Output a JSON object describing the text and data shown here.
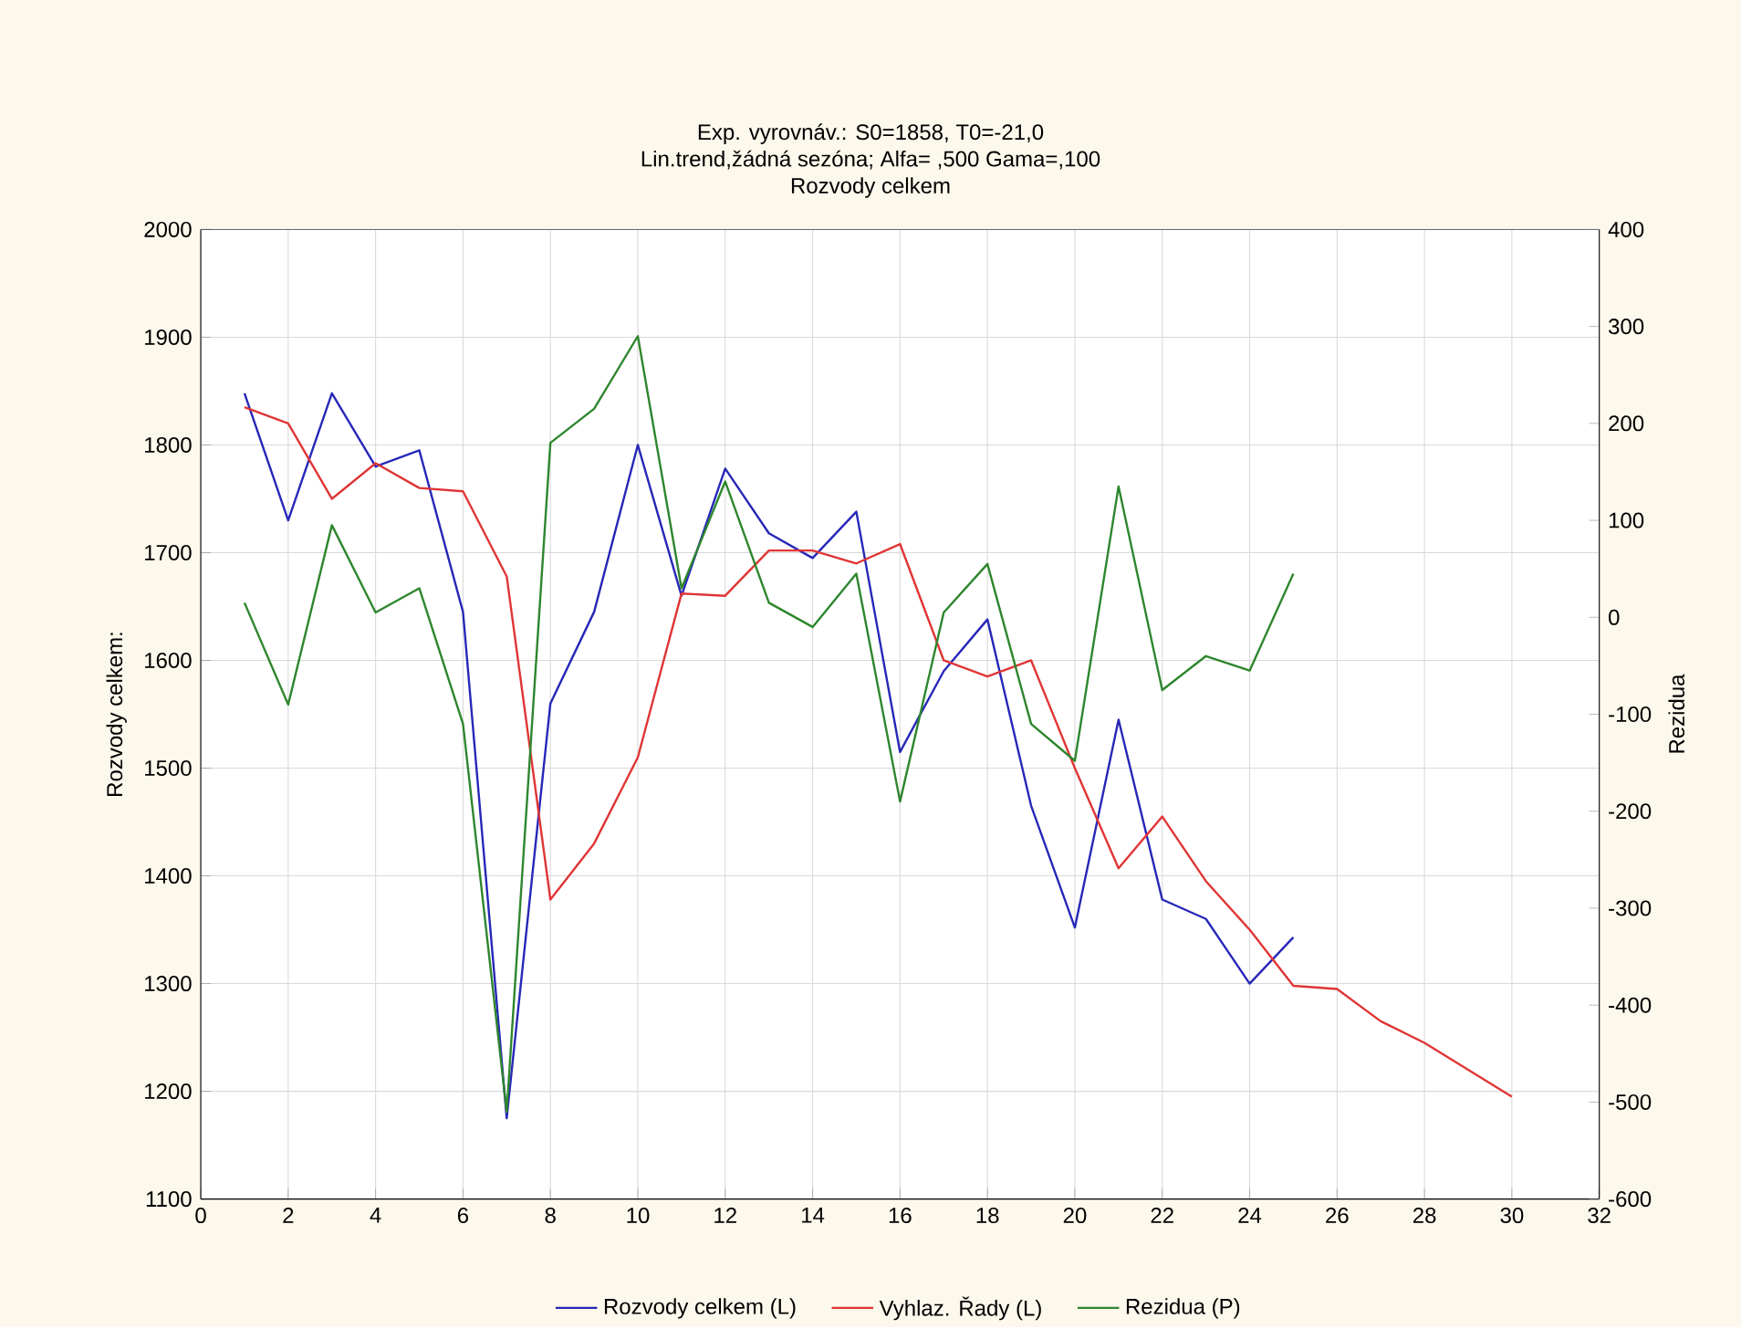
{
  "chart_data": {
    "type": "line",
    "title": "Exp. vyrovnáv.:  S0=1858, T0=-21,0",
    "subtitle": "Lin.trend,žádná sezóna; Alfa=  ,500 Gama=,100",
    "annotations": [
      "Rozvody celkem"
    ],
    "ylabel": "Rozvody celkem:",
    "y2label": "Rezidua",
    "xlim": [
      0,
      32
    ],
    "xticks": [
      0,
      2,
      4,
      6,
      8,
      10,
      12,
      14,
      16,
      18,
      20,
      22,
      24,
      26,
      28,
      30,
      32
    ],
    "ylim": [
      1100,
      2000
    ],
    "yticks": [
      1100,
      1200,
      1300,
      1400,
      1500,
      1600,
      1700,
      1800,
      1900,
      2000
    ],
    "y2lim": [
      -600,
      400
    ],
    "y2ticks": [
      -600,
      -500,
      -400,
      -300,
      -200,
      -100,
      0,
      100,
      200,
      300,
      400
    ],
    "grid": true,
    "legend": "bottom",
    "series": [
      {
        "name": "Rozvody celkem (L)",
        "color": "#2727b8",
        "x": [
          1,
          2,
          3,
          4,
          5,
          6,
          7,
          8,
          9,
          10,
          11,
          12,
          13,
          14,
          15,
          16,
          17,
          18,
          19,
          20,
          21,
          22,
          23,
          24,
          25
        ],
        "values": [
          1848,
          1730,
          1848,
          1780,
          1795,
          1645,
          1175,
          1560,
          1645,
          1800,
          1660,
          1778,
          1718,
          1695,
          1738,
          1515,
          1590,
          1638,
          1465,
          1352,
          1545,
          1378,
          1360,
          1300,
          1343
        ]
      },
      {
        "name": "Vyhlaz. Řady (L)",
        "color": "#e03535",
        "x": [
          1,
          2,
          3,
          4,
          5,
          6,
          7,
          8,
          9,
          10,
          11,
          12,
          13,
          14,
          15,
          16,
          17,
          18,
          19,
          20,
          21,
          22,
          23,
          24,
          25,
          26,
          27,
          28,
          29,
          30
        ],
        "values": [
          1835,
          1820,
          1750,
          1783,
          1760,
          1757,
          1678,
          1378,
          1430,
          1510,
          1662,
          1660,
          1702,
          1702,
          1690,
          1708,
          1600,
          1585,
          1600,
          1500,
          1407,
          1455,
          1395,
          1350,
          1298,
          1295,
          1265,
          1245,
          1220,
          1195
        ]
      },
      {
        "name": "Rezidua (P)",
        "color": "#2e862e",
        "axis": "y2",
        "x": [
          1,
          2,
          3,
          4,
          5,
          6,
          7,
          8,
          9,
          10,
          11,
          12,
          13,
          14,
          15,
          16,
          17,
          18,
          19,
          20,
          21,
          22,
          23,
          24,
          25
        ],
        "values": [
          15,
          -90,
          95,
          5,
          30,
          -110,
          -510,
          180,
          215,
          290,
          30,
          140,
          15,
          -10,
          45,
          -190,
          5,
          55,
          -110,
          -148,
          135,
          -75,
          -40,
          -55,
          45
        ]
      }
    ]
  }
}
